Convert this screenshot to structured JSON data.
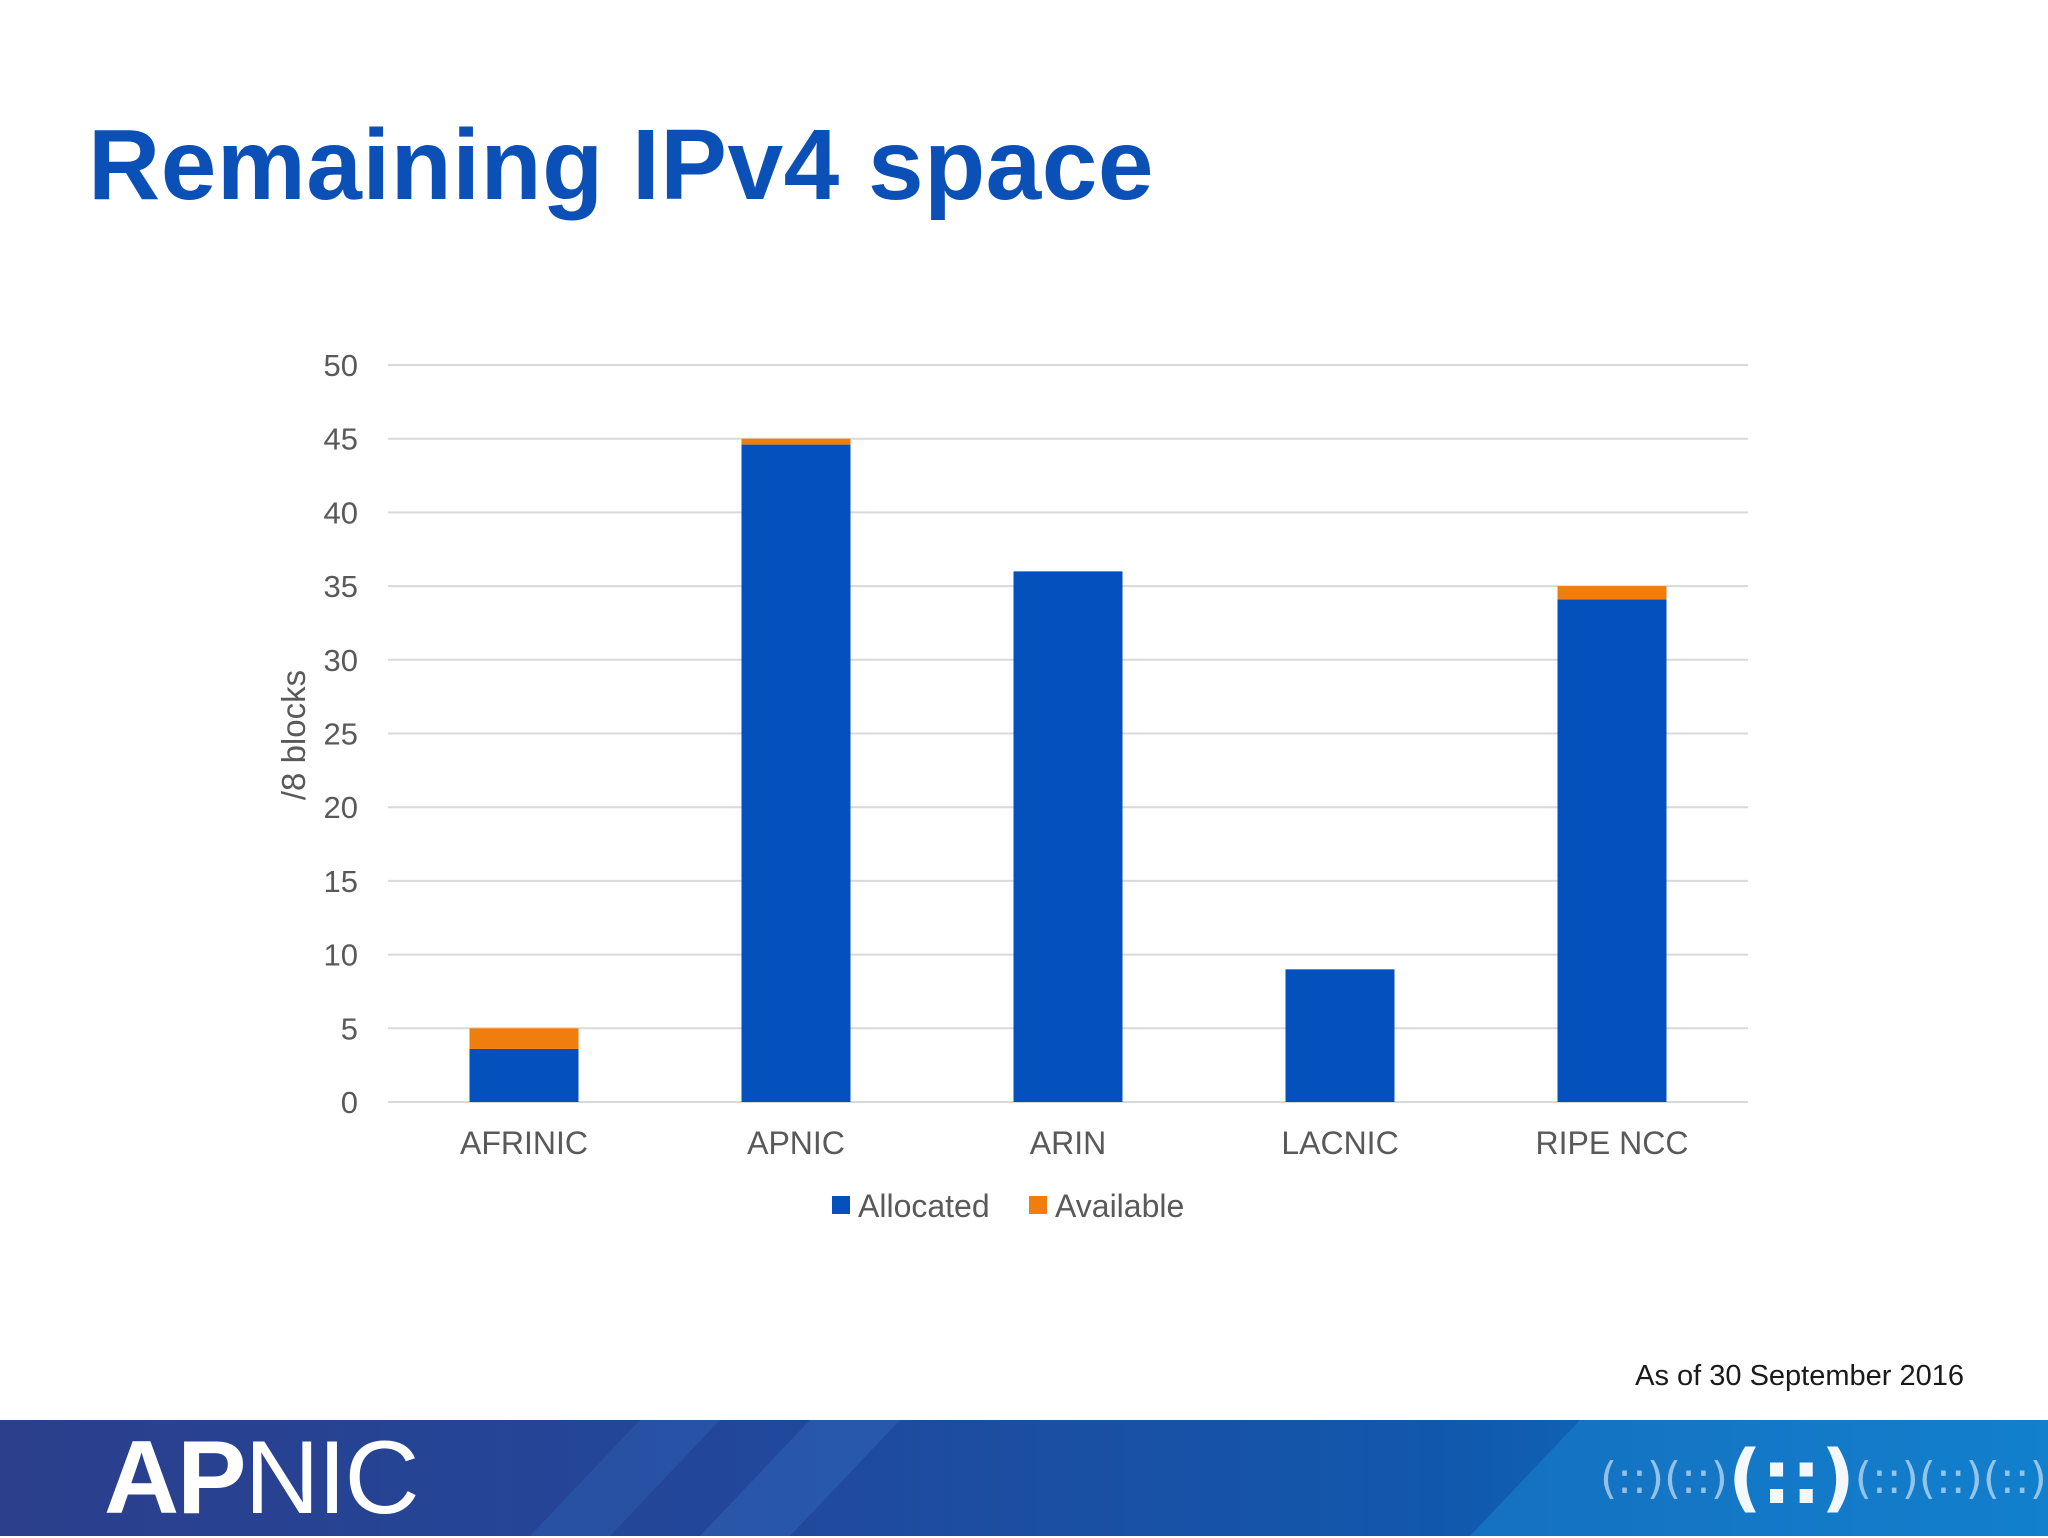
{
  "slide": {
    "title": "Remaining IPv4 space",
    "note": "As of 30 September 2016",
    "logo_text_bold": "AP",
    "logo_text_thin": "NIC",
    "emblem_left": "(::)(::)",
    "emblem_center": "(::)",
    "emblem_right": "(::)(::)(::)"
  },
  "colors": {
    "title": "#0a50b7",
    "allocated": "#0450bd",
    "available": "#f07e0f",
    "grid": "#d9d9d9",
    "axis_text": "#595959",
    "footer_dark": "#28408a",
    "footer_light": "#0a78c8"
  },
  "chart_data": {
    "type": "bar",
    "stacked": true,
    "categories": [
      "AFRINIC",
      "APNIC",
      "ARIN",
      "LACNIC",
      "RIPE NCC"
    ],
    "series": [
      {
        "name": "Allocated",
        "values": [
          3.6,
          44.6,
          36,
          9,
          34.1
        ]
      },
      {
        "name": "Available",
        "values": [
          1.4,
          0.4,
          0,
          0,
          0.9
        ]
      }
    ],
    "ylabel": "/8 blocks",
    "xlabel": "",
    "ylim": [
      0,
      50
    ],
    "yticks": [
      0,
      5,
      10,
      15,
      20,
      25,
      30,
      35,
      40,
      45,
      50
    ],
    "grid": true,
    "legend": "bottom"
  }
}
